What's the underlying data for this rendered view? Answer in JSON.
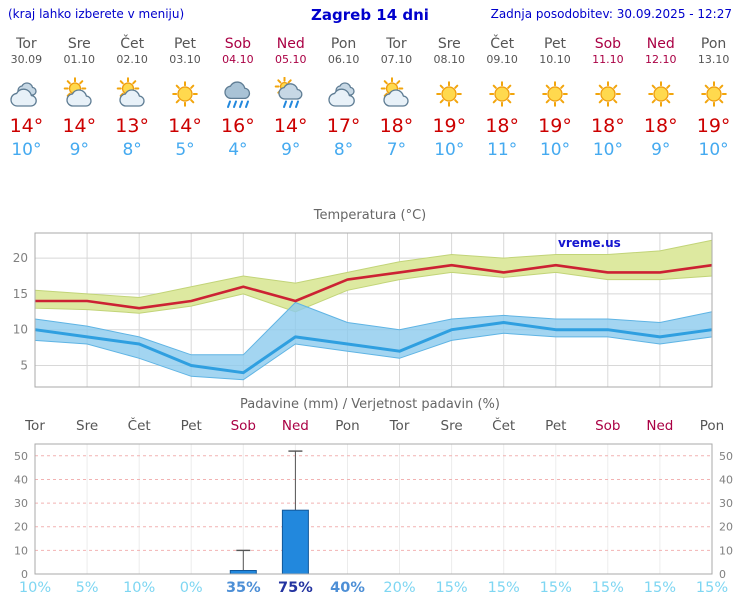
{
  "header": {
    "menu_hint": "(kraj lahko izberete v meniju)",
    "title": "Zagreb 14 dni",
    "last_update": "Zadnja posodobitev: 30.09.2025 - 12:27"
  },
  "days": [
    {
      "name": "Tor",
      "date": "30.09",
      "weekend": false,
      "icon": "cloudy",
      "tmax": 14,
      "tmin": 10
    },
    {
      "name": "Sre",
      "date": "01.10",
      "weekend": false,
      "icon": "partly-cloudy",
      "tmax": 14,
      "tmin": 9
    },
    {
      "name": "Čet",
      "date": "02.10",
      "weekend": false,
      "icon": "partly-cloudy",
      "tmax": 13,
      "tmin": 8
    },
    {
      "name": "Pet",
      "date": "03.10",
      "weekend": false,
      "icon": "sunny",
      "tmax": 14,
      "tmin": 5
    },
    {
      "name": "Sob",
      "date": "04.10",
      "weekend": true,
      "icon": "rain",
      "tmax": 16,
      "tmin": 4
    },
    {
      "name": "Ned",
      "date": "05.10",
      "weekend": true,
      "icon": "sun-rain",
      "tmax": 14,
      "tmin": 9
    },
    {
      "name": "Pon",
      "date": "06.10",
      "weekend": false,
      "icon": "cloudy",
      "tmax": 17,
      "tmin": 8
    },
    {
      "name": "Tor",
      "date": "07.10",
      "weekend": false,
      "icon": "partly-cloudy",
      "tmax": 18,
      "tmin": 7
    },
    {
      "name": "Sre",
      "date": "08.10",
      "weekend": false,
      "icon": "sunny",
      "tmax": 19,
      "tmin": 10
    },
    {
      "name": "Čet",
      "date": "09.10",
      "weekend": false,
      "icon": "sunny",
      "tmax": 18,
      "tmin": 11
    },
    {
      "name": "Pet",
      "date": "10.10",
      "weekend": false,
      "icon": "sunny",
      "tmax": 19,
      "tmin": 10
    },
    {
      "name": "Sob",
      "date": "11.10",
      "weekend": true,
      "icon": "sunny",
      "tmax": 18,
      "tmin": 10
    },
    {
      "name": "Ned",
      "date": "12.10",
      "weekend": true,
      "icon": "sunny",
      "tmax": 18,
      "tmin": 9
    },
    {
      "name": "Pon",
      "date": "13.10",
      "weekend": false,
      "icon": "sunny",
      "tmax": 19,
      "tmin": 10
    }
  ],
  "chart_data": [
    {
      "type": "line",
      "title": "Temperatura (°C)",
      "watermark": "vreme.us",
      "ylim": [
        2,
        23.5
      ],
      "yticks": [
        5,
        10,
        15,
        20
      ],
      "x_labels": [
        "Tor",
        "Sre",
        "Čet",
        "Pet",
        "Sob",
        "Ned",
        "Pon",
        "Tor",
        "Sre",
        "Čet",
        "Pet",
        "Sob",
        "Ned",
        "Pon"
      ],
      "series": [
        {
          "name": "max_temp",
          "values": [
            14,
            14,
            13,
            14,
            16,
            14,
            17,
            18,
            19,
            18,
            19,
            18,
            18,
            19
          ]
        },
        {
          "name": "max_range_upper",
          "values": [
            15.5,
            15,
            14.5,
            16,
            17.5,
            16.5,
            18,
            19.5,
            20.5,
            20,
            20.5,
            20.5,
            21,
            22.5
          ]
        },
        {
          "name": "max_range_lower",
          "values": [
            13,
            12.8,
            12.3,
            13.3,
            15,
            12.5,
            15.5,
            17,
            18,
            17.3,
            18,
            17,
            17,
            17.5
          ]
        },
        {
          "name": "min_temp",
          "values": [
            10,
            9,
            8,
            5,
            4,
            9,
            8,
            7,
            10,
            11,
            10,
            10,
            9,
            10
          ]
        },
        {
          "name": "min_range_upper",
          "values": [
            11.5,
            10.5,
            9,
            6.5,
            6.5,
            13.8,
            11,
            10,
            11.5,
            12,
            11.5,
            11.5,
            11,
            12.5
          ]
        },
        {
          "name": "min_range_lower",
          "values": [
            8.5,
            8,
            6,
            3.5,
            3,
            8,
            7,
            6,
            8.5,
            9.5,
            9,
            9,
            8,
            9
          ]
        }
      ]
    },
    {
      "type": "bar",
      "title": "Padavine (mm) / Verjetnost padavin (%)",
      "categories": [
        "Tor",
        "Sre",
        "Čet",
        "Pet",
        "Sob",
        "Ned",
        "Pon",
        "Tor",
        "Sre",
        "Čet",
        "Pet",
        "Sob",
        "Ned",
        "Pon"
      ],
      "weekend": [
        false,
        false,
        false,
        false,
        true,
        true,
        false,
        false,
        false,
        false,
        false,
        true,
        true,
        false
      ],
      "precip_mm": [
        0,
        0,
        0,
        0,
        1.5,
        27,
        0,
        0,
        0,
        0,
        0,
        0,
        0,
        0
      ],
      "precip_max_mm": [
        0,
        0,
        0,
        0,
        10,
        52,
        0,
        0,
        0,
        0,
        0,
        0,
        0,
        0
      ],
      "probability_pct": [
        10,
        5,
        10,
        0,
        35,
        75,
        40,
        20,
        15,
        15,
        15,
        15,
        15,
        15
      ],
      "ylim": [
        0,
        55
      ],
      "yticks": [
        0,
        10,
        20,
        30,
        40,
        50
      ]
    }
  ],
  "colors": {
    "link_blue": "#0000cc",
    "day_text": "#555555",
    "weekend": "#aa0044",
    "tmax_text": "#cc0000",
    "tmin_text": "#45aaf0",
    "chart_title": "#666666",
    "axis_text": "#808080",
    "grid": "#d8d8d8",
    "border": "#aaaaaa",
    "precip_grid": "#f2b2b2",
    "max_line": "#cc2233",
    "max_band": "#dde9a0",
    "max_band_edge": "#c2d478",
    "min_line": "#2f9fe0",
    "min_band": "#8ccbee",
    "min_band_edge": "#5fb4e4",
    "bar_fill": "#2288dd",
    "bar_edge": "#11579a",
    "whisker": "#555555",
    "pct_low": "#7ed6f2",
    "pct_mid": "#4d8fd6",
    "pct_high": "#2333a0",
    "watermark": "#1515d0",
    "icon_sun": "#ffd94e",
    "icon_sun_ray": "#f2a50c",
    "icon_sun_edge": "#ef9d0e",
    "icon_cloud_light": "#e8f1f8",
    "icon_cloud_mid": "#c7d8e5",
    "icon_cloud_dark": "#a9c3d6",
    "icon_outline": "#5f7d94",
    "icon_rain": "#2288dd"
  }
}
